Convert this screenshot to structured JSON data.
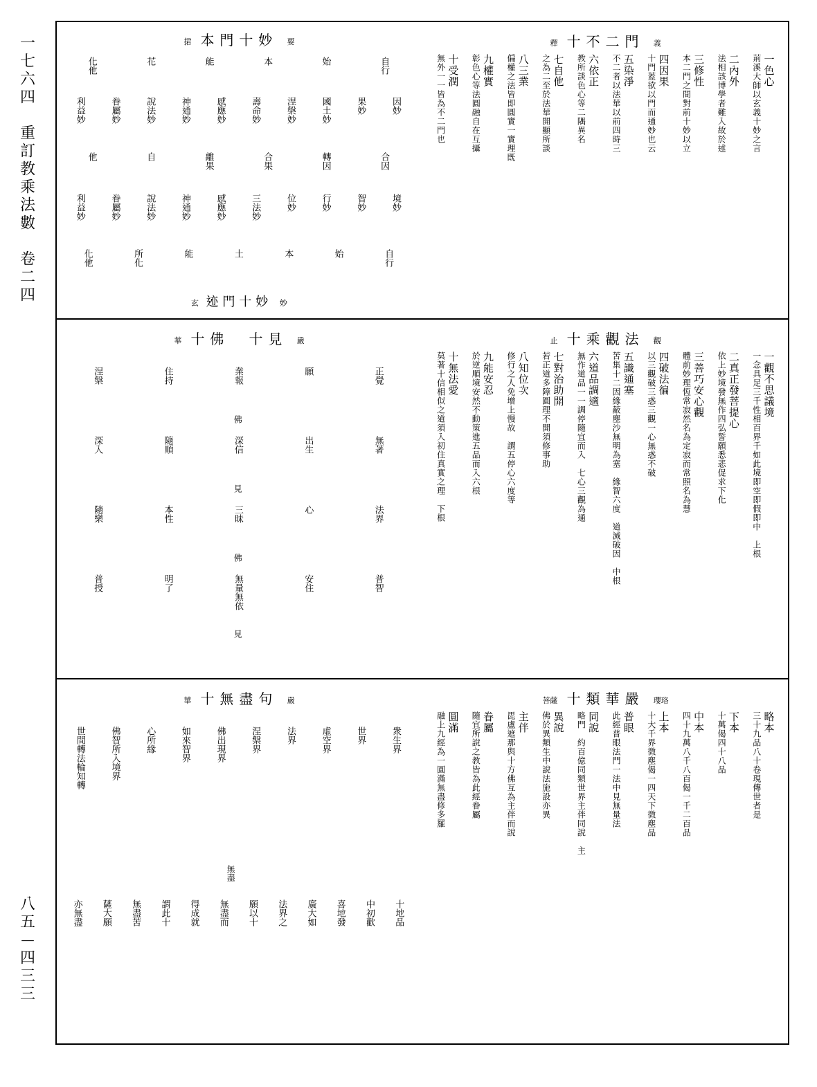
{
  "margin": {
    "top": "一七六四　重訂教乘法數　卷二四",
    "bottom": "八五—四三三"
  },
  "panel1": {
    "right": {
      "title": "釋 十不二門 義",
      "flank_left": "釋",
      "flank_right": "義",
      "main": "十不二門",
      "cols": [
        {
          "head": "一色心",
          "body": "荊溪大師以玄義十妙之言"
        },
        {
          "head": "二內外",
          "body": "法相該博學者難入故於述"
        },
        {
          "head": "三修性",
          "body": "本二門之間對前十妙以立"
        },
        {
          "head": "四因果",
          "body": "十門蓋欲以門而通妙也云"
        },
        {
          "head": "五染淨",
          "body": "不二者以法華以前四時三"
        },
        {
          "head": "六依正",
          "body": "教所談色心等二隅異名"
        },
        {
          "head": "七自他",
          "body": "之為二至於法華開顯所談"
        },
        {
          "head": "八三業",
          "body": "偏權之法皆即圓實一實理既"
        },
        {
          "head": "九權實",
          "body": "彰色心等法圓融自在互攝"
        },
        {
          "head": "十受潤",
          "body": "無外一一皆為不二門也"
        }
      ],
      "mid_row": [
        "境",
        "智",
        "行",
        "位",
        "法",
        "妙",
        "感應",
        "神通",
        "說法",
        "眷屬",
        "利益"
      ]
    },
    "left": {
      "title_top": "捃 本門十妙 要",
      "title_top_main": "本門十妙",
      "title_top_flankL": "捃",
      "title_top_flankR": "要",
      "title_bot": "玄 迹門十妙 妙",
      "title_bot_main": "迹門十妙",
      "title_bot_flankL": "玄",
      "title_bot_flankR": "妙",
      "row1": [
        "自行",
        "始",
        "本",
        "能",
        "花",
        "化他"
      ],
      "row2": [
        "因妙",
        "果妙",
        "國土妙",
        "涅槃妙",
        "壽命妙",
        "感應妙",
        "神通妙",
        "說法妙",
        "眷屬妙",
        "利益妙"
      ],
      "row3": [
        "合因",
        "轉因",
        "合果",
        "離果",
        "自",
        "他"
      ],
      "row4": [
        "境妙",
        "智妙",
        "行妙",
        "位妙",
        "三法妙",
        "感應妙",
        "神通妙",
        "說法妙",
        "眷屬妙",
        "利益妙"
      ],
      "row5": [
        "自行",
        "始",
        "本",
        "土",
        "能",
        "所化",
        "化他"
      ]
    }
  },
  "panel2": {
    "right": {
      "title": "止 十乘觀法 觀",
      "main": "十乘觀法",
      "flankL": "止",
      "flankR": "觀",
      "cols": [
        {
          "head": "一觀不思議境",
          "body": "一念具足三千性相百界千如此境即空即假即中 上根"
        },
        {
          "head": "二真正發菩提心",
          "body": "依上妙境發無作四弘誓願悉悲促求下化"
        },
        {
          "head": "三善巧安心觀",
          "body": "體前妙理恆常寂然名為定寂而常照名為慧"
        },
        {
          "head": "四破法徧",
          "body": "以三觀破三惑三觀一心無惑不破"
        },
        {
          "head": "五識通塞",
          "body": "苦集十二因緣蔽塵沙無明為塞　緣智六度　道滅破因 中根"
        },
        {
          "head": "六道品調適",
          "body": "無作道品一一調停隨宜而入　七心三觀為通"
        },
        {
          "head": "七對治助開",
          "body": "若正道多障圓理不開須修事助"
        },
        {
          "head": "八知位次",
          "body": "修行之人免增上慢故　謂五停心六度等"
        },
        {
          "head": "九能安忍",
          "body": "於逆順境安然不動策進五品而入六根"
        },
        {
          "head": "十無法愛",
          "body": "莫著十信相似之道須入初住真實之理 下根"
        }
      ]
    },
    "left": {
      "title": "華 十佛　十見 嚴",
      "main1": "十佛",
      "main2": "十見",
      "flankL": "華",
      "flankR": "嚴",
      "top_row": [
        "正覺",
        "願",
        "業報",
        "住持",
        "涅槃"
      ],
      "top_label": "佛",
      "mid_row": [
        "無著",
        "出生",
        "深信",
        "隨順",
        "深入"
      ],
      "mid_label": "見",
      "mid2_row": [
        "法界",
        "心",
        "三昧",
        "本性",
        "隨樂"
      ],
      "mid2_label": "佛",
      "bot_row": [
        "普智",
        "安住",
        "無量無依",
        "明了",
        "普授"
      ],
      "bot_label": "見"
    }
  },
  "panel3": {
    "right": {
      "title": "菩薩 十類華嚴 瓔珞",
      "main": "十類華嚴",
      "flankL": "菩薩",
      "flankR": "瓔珞",
      "cols": [
        {
          "head": "略本",
          "body": "三十九品八十卷現傳世者是"
        },
        {
          "head": "下本",
          "body": "十萬偈四十八品"
        },
        {
          "head": "中本",
          "body": "四十九萬八千八百偈一千二百品"
        },
        {
          "head": "上本",
          "body": "十大千界微塵偈一四天下微塵品"
        },
        {
          "head": "普眼",
          "body": "此經普眼法門一法中見無量法"
        },
        {
          "head": "同說",
          "body": "略門　約百億同類世界主伴同說　主"
        },
        {
          "head": "異說",
          "body": "佛於異類生中說法施設亦異"
        },
        {
          "head": "主伴",
          "body": "毘盧遮那與十方佛互為主伴而說"
        },
        {
          "head": "眷屬",
          "body": "隨宜所說之教皆為此經眷屬"
        },
        {
          "head": "圓滿",
          "body": "融上九經為一圓滿無盡修多羅"
        }
      ]
    },
    "left": {
      "title": "華 十無盡句 嚴",
      "main": "十無盡句",
      "flankL": "華",
      "flankR": "嚴",
      "top_row": [
        "衆生界",
        "世界",
        "虛空界",
        "法界",
        "涅槃界",
        "佛出現界",
        "如來智界",
        "心所緣",
        "佛智所入境界",
        "世間轉法輪知轉"
      ],
      "label_center": "無盡",
      "bot_row": [
        "十地品",
        "中初歡",
        "喜地發",
        "廣大如",
        "法界之",
        "願以十",
        "無盡而",
        "得成就",
        "謂此十",
        "無盡苦",
        "薩大願",
        "亦無盡"
      ]
    }
  }
}
